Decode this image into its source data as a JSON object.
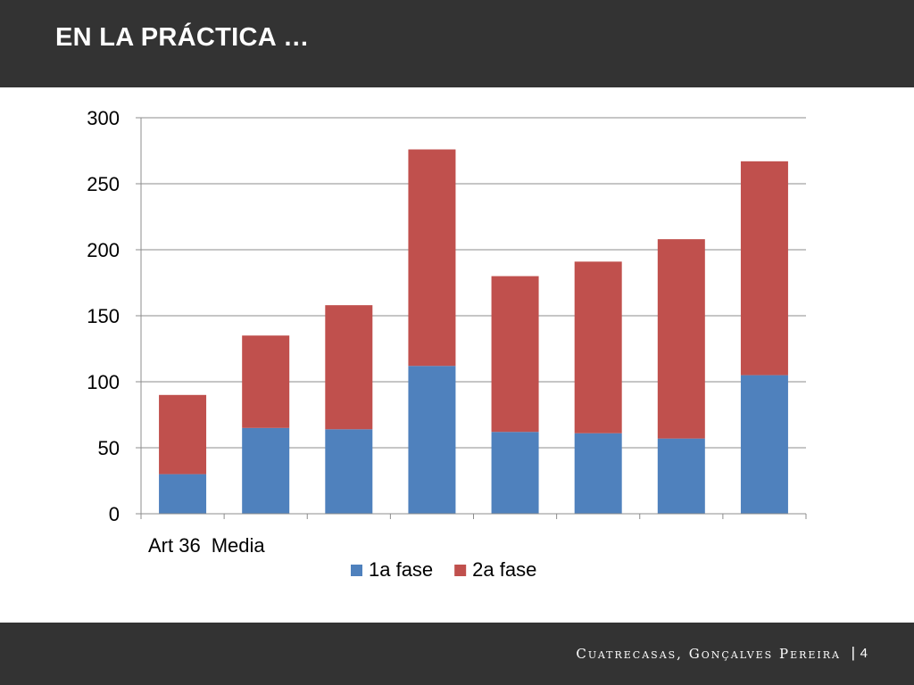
{
  "slide": {
    "title": "EN LA PRÁCTICA …",
    "footer_firm": "Cuatrecasas, Gonçalves Pereira",
    "footer_separator": "|",
    "page_number": "4"
  },
  "colors": {
    "band": "#333333",
    "series_1": "#4f81bd",
    "series_2": "#c0504d",
    "grid": "#8c8c8c"
  },
  "chart_data": {
    "type": "bar",
    "stacked": true,
    "categories": [
      "Art 36",
      "Media",
      "",
      "",
      "",
      "",
      "",
      ""
    ],
    "series": [
      {
        "name": "1a fase",
        "values": [
          30,
          65,
          64,
          112,
          62,
          61,
          57,
          105
        ]
      },
      {
        "name": "2a fase",
        "values": [
          60,
          70,
          94,
          164,
          118,
          130,
          151,
          162
        ]
      }
    ],
    "ylim": [
      0,
      300
    ],
    "yticks": [
      0,
      50,
      100,
      150,
      200,
      250,
      300
    ],
    "grid": true,
    "legend": "bottom"
  }
}
